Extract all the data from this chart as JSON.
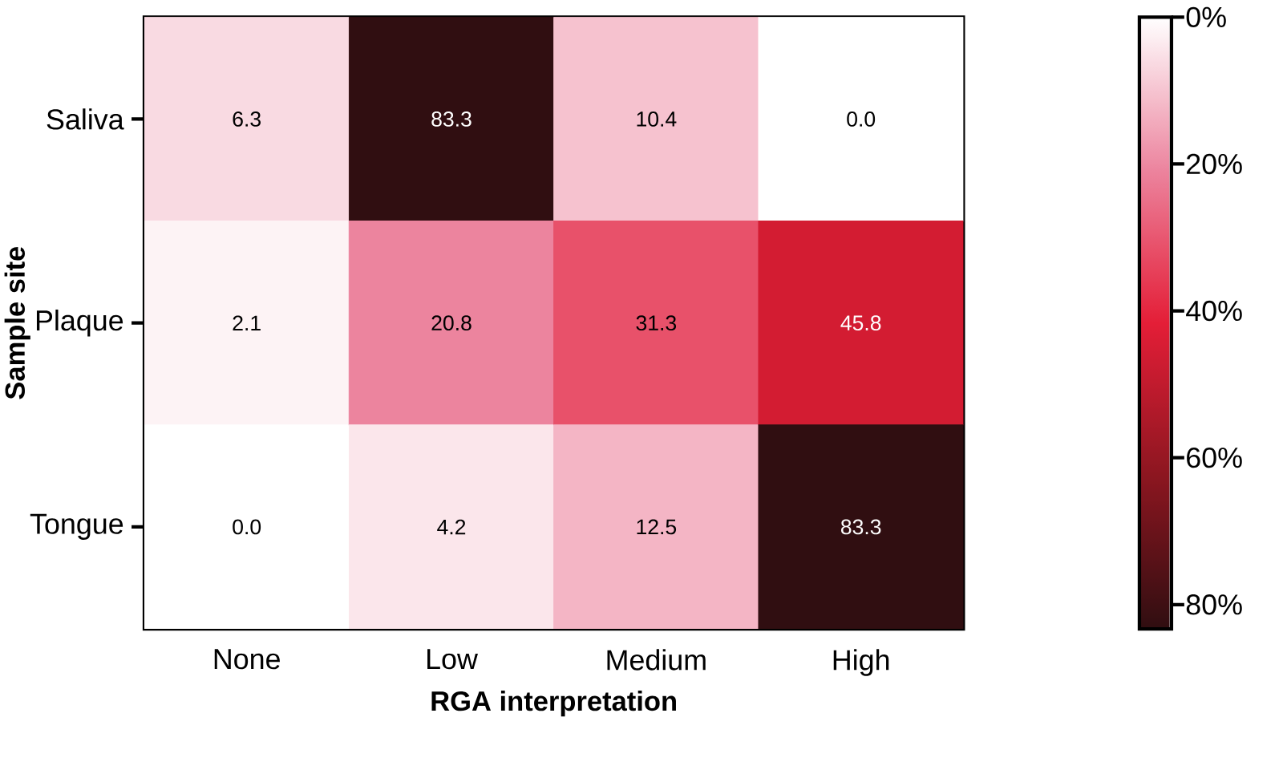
{
  "chart_data": {
    "type": "heatmap",
    "xlabel": "RGA interpretation",
    "ylabel": "Sample site",
    "categories": [
      "None",
      "Low",
      "Medium",
      "High"
    ],
    "y_categories": [
      "Saliva",
      "Plaque",
      "Tongue"
    ],
    "cells": [
      [
        6.3,
        83.3,
        10.4,
        0.0
      ],
      [
        2.1,
        20.8,
        31.3,
        45.8
      ],
      [
        0.0,
        4.2,
        12.5,
        83.3
      ]
    ],
    "cell_labels": [
      [
        "6.3",
        "83.3",
        "10.4",
        "0.0"
      ],
      [
        "2.1",
        "20.8",
        "31.3",
        "45.8"
      ],
      [
        "0.0",
        "4.2",
        "12.5",
        "83.3"
      ]
    ],
    "clim": [
      0,
      83.3
    ],
    "cticks": [
      {
        "value": 0,
        "label": "0%"
      },
      {
        "value": 20,
        "label": "20%"
      },
      {
        "value": 40,
        "label": "40%"
      },
      {
        "value": 60,
        "label": "60%"
      },
      {
        "value": 80,
        "label": "80%"
      }
    ]
  }
}
